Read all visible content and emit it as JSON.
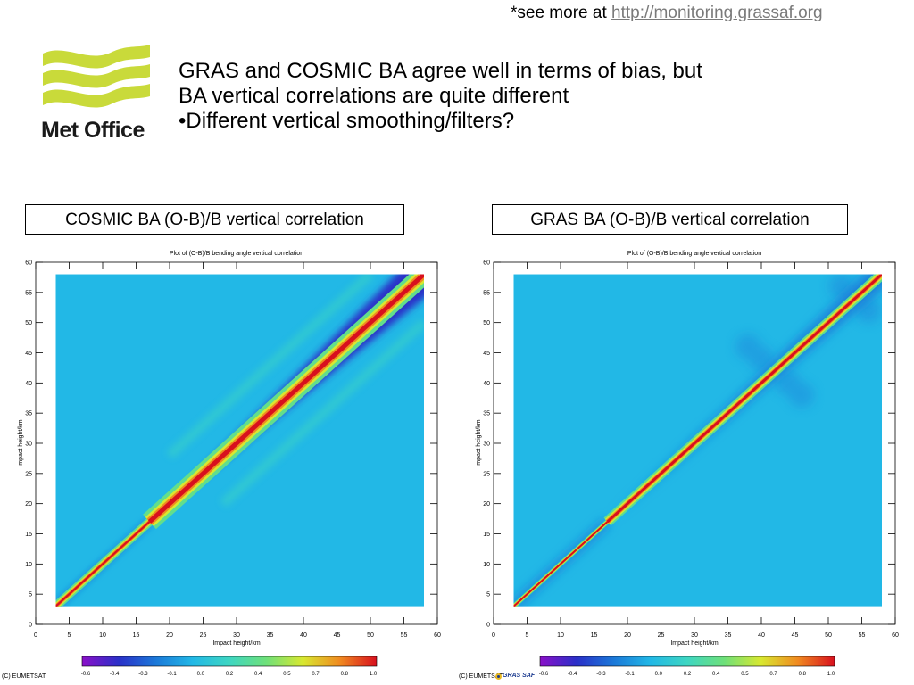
{
  "header": {
    "see_more_prefix": "*see more at",
    "see_more_link": "http://monitoring.grassaf.org"
  },
  "logo": {
    "text": "Met Office"
  },
  "headline": {
    "line1": "GRAS and COSMIC BA agree well in terms of bias, but",
    "line2": "BA vertical correlations are quite different",
    "line3": "•Different vertical smoothing/filters?"
  },
  "panels": {
    "left_label": "COSMIC BA (O-B)/B vertical correlation",
    "right_label": "GRAS BA (O-B)/B vertical correlation"
  },
  "footer": {
    "left_credit": "(C) EUMETSAT",
    "right_credit": "(C) EUMETSAT",
    "right_logo_text": "GRAS SAF"
  },
  "colors": {
    "background_field": "#26b8e4",
    "diagonal_core": "#c8141e",
    "negative_band": "#2032b8"
  },
  "chart_data": [
    {
      "type": "heatmap",
      "title": "Plot of (O-B)/B bending angle vertical correlation",
      "xlabel": "Impact height/km",
      "ylabel": "Impact height/km",
      "xlim": [
        0,
        60
      ],
      "ylim": [
        0,
        60
      ],
      "xticks": [
        0,
        5,
        10,
        15,
        20,
        25,
        30,
        35,
        40,
        45,
        50,
        55,
        60
      ],
      "yticks": [
        0,
        5,
        10,
        15,
        20,
        25,
        30,
        35,
        40,
        45,
        50,
        55,
        60
      ],
      "data_extent": [
        3,
        58
      ],
      "diagonal_value": 1.0,
      "background_value": 0.0,
      "negative_band": {
        "value": -0.4,
        "start_km": 17
      },
      "colorbar": {
        "ticks": [
          -0.6,
          -0.4,
          -0.3,
          -0.1,
          0.0,
          0.2,
          0.4,
          0.5,
          0.7,
          0.8,
          1.0
        ]
      }
    },
    {
      "type": "heatmap",
      "title": "Plot of (O-B)/B bending angle vertical correlation",
      "xlabel": "Impact height/km",
      "ylabel": "Impact height/km",
      "xlim": [
        0,
        60
      ],
      "ylim": [
        0,
        60
      ],
      "xticks": [
        0,
        5,
        10,
        15,
        20,
        25,
        30,
        35,
        40,
        45,
        50,
        55,
        60
      ],
      "yticks": [
        0,
        5,
        10,
        15,
        20,
        25,
        30,
        35,
        40,
        45,
        50,
        55,
        60
      ],
      "data_extent": [
        3,
        58
      ],
      "diagonal_value": 1.0,
      "background_value": 0.0,
      "negative_band": {
        "value": -0.2,
        "start_km": 17
      },
      "colorbar": {
        "ticks": [
          -0.6,
          -0.4,
          -0.3,
          -0.1,
          0.0,
          0.2,
          0.4,
          0.5,
          0.7,
          0.8,
          1.0
        ]
      }
    }
  ]
}
